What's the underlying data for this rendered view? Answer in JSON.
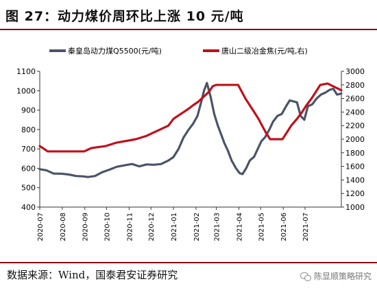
{
  "header": {
    "title": "图 27：动力煤价周环比上涨 10 元/吨"
  },
  "footer": {
    "source": "数据来源：Wind，国泰君安证券研究",
    "watermark": "陈显顺策略研究"
  },
  "chart_data": {
    "type": "line",
    "legend": [
      "秦皇岛动力煤Q5500(元/吨)",
      "唐山二级冶金焦(元/吨,右)"
    ],
    "legend_position": "top",
    "grid": false,
    "x": [
      "2020-07",
      "2020-08",
      "2020-09",
      "2020-10",
      "2020-11",
      "2020-12",
      "2021-01",
      "2021-02",
      "2021-03",
      "2021-04",
      "2021-05",
      "2021-06",
      "2021-07"
    ],
    "x_tick_labels": [
      "2020-07",
      "2020-08",
      "2020-09",
      "2020-10",
      "2020-11",
      "2020-12",
      "2021-01",
      "2021-02",
      "2021-03",
      "2021-04",
      "2021-05",
      "2021-06",
      "2021-07"
    ],
    "y_left": {
      "ticks": [
        400,
        500,
        600,
        700,
        800,
        900,
        1000,
        1100
      ],
      "range": [
        400,
        1100
      ]
    },
    "y_right": {
      "ticks": [
        1000,
        1200,
        1400,
        1600,
        1800,
        2000,
        2200,
        2400,
        2600,
        2800,
        3000
      ],
      "range": [
        1000,
        3000
      ]
    },
    "series": [
      {
        "name": "秦皇岛动力煤Q5500(元/吨)",
        "axis": "left",
        "color": "#4a5468",
        "points": [
          [
            "2020-07-01",
            595
          ],
          [
            "2020-07-10",
            590
          ],
          [
            "2020-07-20",
            573
          ],
          [
            "2020-07-31",
            572
          ],
          [
            "2020-08-10",
            568
          ],
          [
            "2020-08-20",
            560
          ],
          [
            "2020-08-31",
            558
          ],
          [
            "2020-09-05",
            555
          ],
          [
            "2020-09-15",
            560
          ],
          [
            "2020-09-25",
            580
          ],
          [
            "2020-10-05",
            593
          ],
          [
            "2020-10-15",
            608
          ],
          [
            "2020-10-25",
            615
          ],
          [
            "2020-11-05",
            622
          ],
          [
            "2020-11-15",
            610
          ],
          [
            "2020-11-25",
            620
          ],
          [
            "2020-12-05",
            618
          ],
          [
            "2020-12-15",
            622
          ],
          [
            "2020-12-25",
            640
          ],
          [
            "2021-01-01",
            658
          ],
          [
            "2021-01-08",
            700
          ],
          [
            "2021-01-15",
            760
          ],
          [
            "2021-01-22",
            800
          ],
          [
            "2021-01-28",
            830
          ],
          [
            "2021-02-03",
            870
          ],
          [
            "2021-02-08",
            940
          ],
          [
            "2021-02-12",
            1000
          ],
          [
            "2021-02-16",
            1040
          ],
          [
            "2021-02-21",
            970
          ],
          [
            "2021-02-26",
            880
          ],
          [
            "2021-03-03",
            820
          ],
          [
            "2021-03-08",
            770
          ],
          [
            "2021-03-12",
            730
          ],
          [
            "2021-03-17",
            690
          ],
          [
            "2021-03-22",
            640
          ],
          [
            "2021-03-28",
            600
          ],
          [
            "2021-04-02",
            575
          ],
          [
            "2021-04-06",
            570
          ],
          [
            "2021-04-11",
            600
          ],
          [
            "2021-04-16",
            640
          ],
          [
            "2021-04-22",
            660
          ],
          [
            "2021-04-27",
            700
          ],
          [
            "2021-05-02",
            740
          ],
          [
            "2021-05-07",
            760
          ],
          [
            "2021-05-13",
            800
          ],
          [
            "2021-05-18",
            840
          ],
          [
            "2021-05-24",
            870
          ],
          [
            "2021-05-30",
            880
          ],
          [
            "2021-06-05",
            920
          ],
          [
            "2021-06-10",
            950
          ],
          [
            "2021-06-15",
            945
          ],
          [
            "2021-06-20",
            940
          ],
          [
            "2021-06-25",
            870
          ],
          [
            "2021-06-30",
            850
          ],
          [
            "2021-07-05",
            920
          ],
          [
            "2021-07-11",
            930
          ],
          [
            "2021-07-17",
            960
          ],
          [
            "2021-07-23",
            980
          ],
          [
            "2021-07-29",
            990
          ],
          [
            "2021-08-04",
            1005
          ],
          [
            "2021-08-09",
            1010
          ],
          [
            "2021-08-14",
            980
          ],
          [
            "2021-08-20",
            985
          ]
        ]
      },
      {
        "name": "唐山二级冶金焦(元/吨,右)",
        "axis": "right",
        "color": "#c0101a",
        "points": [
          [
            "2020-07-01",
            1900
          ],
          [
            "2020-07-12",
            1820
          ],
          [
            "2020-07-31",
            1820
          ],
          [
            "2020-08-31",
            1820
          ],
          [
            "2020-09-10",
            1870
          ],
          [
            "2020-09-30",
            1900
          ],
          [
            "2020-10-15",
            1950
          ],
          [
            "2020-10-31",
            1980
          ],
          [
            "2020-11-10",
            2000
          ],
          [
            "2020-11-25",
            2050
          ],
          [
            "2020-12-05",
            2100
          ],
          [
            "2020-12-15",
            2150
          ],
          [
            "2020-12-25",
            2200
          ],
          [
            "2021-01-01",
            2300
          ],
          [
            "2021-01-08",
            2350
          ],
          [
            "2021-01-15",
            2400
          ],
          [
            "2021-01-22",
            2450
          ],
          [
            "2021-01-28",
            2500
          ],
          [
            "2021-02-04",
            2550
          ],
          [
            "2021-02-09",
            2600
          ],
          [
            "2021-02-14",
            2650
          ],
          [
            "2021-02-19",
            2700
          ],
          [
            "2021-02-24",
            2780
          ],
          [
            "2021-03-01",
            2800
          ],
          [
            "2021-03-31",
            2800
          ],
          [
            "2021-04-05",
            2700
          ],
          [
            "2021-04-10",
            2600
          ],
          [
            "2021-04-16",
            2500
          ],
          [
            "2021-04-22",
            2400
          ],
          [
            "2021-04-28",
            2300
          ],
          [
            "2021-05-03",
            2200
          ],
          [
            "2021-05-08",
            2100
          ],
          [
            "2021-05-14",
            2000
          ],
          [
            "2021-05-31",
            2000
          ],
          [
            "2021-06-06",
            2100
          ],
          [
            "2021-06-12",
            2200
          ],
          [
            "2021-06-20",
            2300
          ],
          [
            "2021-06-27",
            2400
          ],
          [
            "2021-07-03",
            2500
          ],
          [
            "2021-07-10",
            2600
          ],
          [
            "2021-07-16",
            2700
          ],
          [
            "2021-07-22",
            2800
          ],
          [
            "2021-08-01",
            2820
          ],
          [
            "2021-08-20",
            2720
          ]
        ]
      }
    ]
  }
}
